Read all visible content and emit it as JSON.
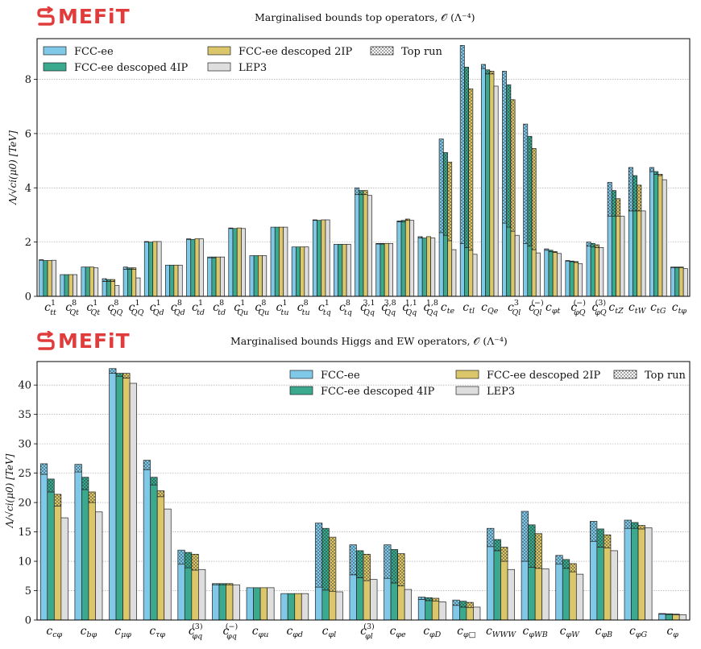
{
  "logo": {
    "text": "MEFiT",
    "color": "#e03c3c"
  },
  "colors": {
    "fcc_ee": "#7fc8e8",
    "fcc_4ip": "#3aa98e",
    "fcc_2ip": "#dcc66a",
    "lep3": "#dedede"
  },
  "chart_data": [
    {
      "type": "bar",
      "title": "Marginalised bounds top operators, 𝒪 (Λ⁻⁴)",
      "ylabel": "Λ/√ci(μ0) [TeV]",
      "ylim": [
        0,
        9.5
      ],
      "yticks": [
        0,
        2,
        4,
        6,
        8
      ],
      "grid": true,
      "legend_placement": "top-left",
      "legend_top_run": "Top run",
      "categories": [
        {
          "base": "c",
          "sub": "tt",
          "sup": "1"
        },
        {
          "base": "c",
          "sub": "Qt",
          "sup": "8"
        },
        {
          "base": "c",
          "sub": "Qt",
          "sup": "1"
        },
        {
          "base": "c",
          "sub": "QQ",
          "sup": "8"
        },
        {
          "base": "c",
          "sub": "QQ",
          "sup": "1"
        },
        {
          "base": "c",
          "sub": "Qd",
          "sup": "1"
        },
        {
          "base": "c",
          "sub": "Qd",
          "sup": "8"
        },
        {
          "base": "c",
          "sub": "td",
          "sup": "1"
        },
        {
          "base": "c",
          "sub": "td",
          "sup": "8"
        },
        {
          "base": "c",
          "sub": "Qu",
          "sup": "1"
        },
        {
          "base": "c",
          "sub": "Qu",
          "sup": "8"
        },
        {
          "base": "c",
          "sub": "tu",
          "sup": "1"
        },
        {
          "base": "c",
          "sub": "tu",
          "sup": "8"
        },
        {
          "base": "c",
          "sub": "tq",
          "sup": "1"
        },
        {
          "base": "c",
          "sub": "tq",
          "sup": "8"
        },
        {
          "base": "c",
          "sub": "Qq",
          "sup": "3,1"
        },
        {
          "base": "c",
          "sub": "Qq",
          "sup": "3,8"
        },
        {
          "base": "c",
          "sub": "Qq",
          "sup": "1,1"
        },
        {
          "base": "c",
          "sub": "Qq",
          "sup": "1,8"
        },
        {
          "base": "c",
          "sub": "te",
          "sup": ""
        },
        {
          "base": "c",
          "sub": "tl",
          "sup": ""
        },
        {
          "base": "c",
          "sub": "Qe",
          "sup": ""
        },
        {
          "base": "c",
          "sub": "Ql",
          "sup": "3"
        },
        {
          "base": "c",
          "sub": "Ql",
          "sup": "(−)"
        },
        {
          "base": "c",
          "sub": "φt",
          "sup": ""
        },
        {
          "base": "c",
          "sub": "φQ",
          "sup": "(−)"
        },
        {
          "base": "c",
          "sub": "φQ",
          "sup": "(3)"
        },
        {
          "base": "c",
          "sub": "tZ",
          "sup": ""
        },
        {
          "base": "c",
          "sub": "tW",
          "sup": ""
        },
        {
          "base": "c",
          "sub": "tG",
          "sup": ""
        },
        {
          "base": "c",
          "sub": "tφ",
          "sup": ""
        }
      ],
      "series": [
        {
          "name": "FCC-ee",
          "values": [
            1.33,
            0.8,
            1.08,
            0.55,
            1.0,
            2.0,
            1.15,
            2.1,
            1.42,
            2.5,
            1.5,
            2.55,
            1.82,
            2.8,
            1.92,
            3.75,
            1.93,
            2.75,
            2.15,
            2.35,
            1.95,
            8.4,
            2.7,
            1.95,
            1.7,
            1.3,
            1.85,
            2.95,
            3.15,
            4.6,
            1.05
          ],
          "top_run": [
            1.35,
            0.8,
            1.08,
            0.65,
            1.08,
            2.02,
            1.15,
            2.12,
            1.45,
            2.52,
            1.5,
            2.55,
            1.82,
            2.82,
            1.92,
            4.0,
            1.95,
            2.78,
            2.2,
            5.8,
            9.25,
            8.55,
            8.3,
            6.35,
            1.75,
            1.32,
            2.0,
            4.2,
            4.75,
            4.75,
            1.08
          ]
        },
        {
          "name": "FCC-ee descoped 4IP",
          "values": [
            1.32,
            0.8,
            1.08,
            0.55,
            1.0,
            2.0,
            1.15,
            2.1,
            1.42,
            2.5,
            1.5,
            2.55,
            1.82,
            2.8,
            1.92,
            3.75,
            1.93,
            2.75,
            2.15,
            2.25,
            1.8,
            8.2,
            2.55,
            1.85,
            1.65,
            1.28,
            1.82,
            2.95,
            3.15,
            4.5,
            1.05
          ],
          "top_run": [
            1.32,
            0.8,
            1.08,
            0.62,
            1.05,
            2.0,
            1.15,
            2.1,
            1.45,
            2.5,
            1.5,
            2.55,
            1.82,
            2.8,
            1.92,
            3.9,
            1.95,
            2.8,
            2.15,
            5.3,
            8.45,
            8.35,
            7.8,
            5.9,
            1.7,
            1.3,
            1.95,
            3.9,
            4.45,
            4.6,
            1.08
          ]
        },
        {
          "name": "FCC-ee descoped 2IP",
          "values": [
            1.32,
            0.8,
            1.08,
            0.55,
            1.0,
            2.02,
            1.15,
            2.12,
            1.45,
            2.52,
            1.5,
            2.55,
            1.82,
            2.82,
            1.92,
            3.75,
            1.95,
            2.8,
            2.2,
            2.05,
            1.7,
            8.2,
            2.4,
            1.72,
            1.62,
            1.25,
            1.8,
            2.95,
            3.15,
            4.45,
            1.05
          ],
          "top_run": [
            1.32,
            0.8,
            1.08,
            0.62,
            1.05,
            2.02,
            1.15,
            2.12,
            1.45,
            2.52,
            1.5,
            2.55,
            1.82,
            2.82,
            1.92,
            3.9,
            1.95,
            2.85,
            2.2,
            4.95,
            7.65,
            8.3,
            7.25,
            5.45,
            1.65,
            1.28,
            1.9,
            3.6,
            4.1,
            4.5,
            1.08
          ]
        },
        {
          "name": "LEP3",
          "values": [
            1.33,
            0.8,
            1.05,
            0.4,
            0.68,
            2.02,
            1.15,
            2.12,
            1.45,
            2.5,
            1.5,
            2.55,
            1.82,
            2.82,
            1.92,
            3.72,
            1.95,
            2.8,
            2.15,
            1.72,
            1.55,
            7.75,
            2.25,
            1.6,
            1.58,
            1.2,
            1.8,
            2.95,
            3.15,
            4.3,
            1.02
          ],
          "top_run": [
            1.33,
            0.8,
            1.05,
            0.4,
            0.68,
            2.02,
            1.15,
            2.12,
            1.45,
            2.5,
            1.5,
            2.55,
            1.82,
            2.82,
            1.92,
            3.72,
            1.95,
            2.8,
            2.15,
            1.72,
            1.55,
            7.75,
            2.25,
            1.6,
            1.58,
            1.2,
            1.8,
            2.95,
            3.15,
            4.3,
            1.02
          ]
        }
      ]
    },
    {
      "type": "bar",
      "title": "Marginalised bounds Higgs and EW operators, 𝒪 (Λ⁻⁴)",
      "ylabel": "Λ/√ci(μ0) [TeV]",
      "ylim": [
        0,
        44
      ],
      "yticks": [
        0,
        5,
        10,
        15,
        20,
        25,
        30,
        35,
        40
      ],
      "grid": true,
      "legend_placement": "top-right",
      "legend_top_run": "Top run",
      "categories": [
        {
          "base": "c",
          "sub": "cφ",
          "sup": ""
        },
        {
          "base": "c",
          "sub": "bφ",
          "sup": ""
        },
        {
          "base": "c",
          "sub": "μφ",
          "sup": ""
        },
        {
          "base": "c",
          "sub": "τφ",
          "sup": ""
        },
        {
          "base": "c",
          "sub": "φq",
          "sup": "(3)"
        },
        {
          "base": "c",
          "sub": "φq",
          "sup": "(−)"
        },
        {
          "base": "c",
          "sub": "φu",
          "sup": ""
        },
        {
          "base": "c",
          "sub": "φd",
          "sup": ""
        },
        {
          "base": "c",
          "sub": "φl",
          "sup": ""
        },
        {
          "base": "c",
          "sub": "φl",
          "sup": "(3)"
        },
        {
          "base": "c",
          "sub": "φe",
          "sup": ""
        },
        {
          "base": "c",
          "sub": "φD",
          "sup": ""
        },
        {
          "base": "c",
          "sub": "φ□",
          "sup": ""
        },
        {
          "base": "c",
          "sub": "WWW",
          "sup": ""
        },
        {
          "base": "c",
          "sub": "φWB",
          "sup": ""
        },
        {
          "base": "c",
          "sub": "φW",
          "sup": ""
        },
        {
          "base": "c",
          "sub": "φB",
          "sup": ""
        },
        {
          "base": "c",
          "sub": "φG",
          "sup": ""
        },
        {
          "base": "c",
          "sub": "φ",
          "sup": ""
        }
      ],
      "series": [
        {
          "name": "FCC-ee",
          "values": [
            24.8,
            25.2,
            42.0,
            25.6,
            9.5,
            6.0,
            5.5,
            4.5,
            5.6,
            7.7,
            7.1,
            3.5,
            2.5,
            12.5,
            10.0,
            9.5,
            13.4,
            15.6,
            1.0
          ],
          "top_run": [
            26.6,
            26.5,
            42.8,
            27.2,
            11.9,
            6.2,
            5.5,
            4.5,
            16.5,
            12.8,
            12.8,
            3.9,
            3.4,
            15.6,
            18.5,
            11.0,
            16.8,
            17.0,
            1.1
          ]
        },
        {
          "name": "FCC-ee descoped 4IP",
          "values": [
            21.8,
            22.2,
            41.5,
            23.0,
            8.9,
            6.0,
            5.5,
            4.5,
            5.1,
            7.2,
            6.3,
            3.3,
            2.2,
            11.8,
            9.0,
            8.8,
            12.4,
            15.6,
            0.95
          ],
          "top_run": [
            24.0,
            24.3,
            42.0,
            24.3,
            11.5,
            6.2,
            5.5,
            4.5,
            15.6,
            11.8,
            12.0,
            3.8,
            3.2,
            13.7,
            16.2,
            10.3,
            15.5,
            16.6,
            1.05
          ]
        },
        {
          "name": "FCC-ee descoped 2IP",
          "values": [
            19.4,
            20.0,
            41.2,
            21.0,
            8.5,
            6.0,
            5.5,
            4.5,
            4.9,
            6.7,
            5.8,
            3.2,
            2.1,
            10.0,
            8.8,
            8.2,
            12.3,
            15.5,
            0.9
          ],
          "top_run": [
            21.4,
            21.8,
            42.0,
            22.0,
            11.2,
            6.2,
            5.5,
            4.5,
            14.1,
            11.2,
            11.3,
            3.7,
            3.0,
            12.4,
            14.7,
            9.6,
            14.5,
            16.1,
            1.0
          ]
        },
        {
          "name": "LEP3",
          "values": [
            17.4,
            18.4,
            40.3,
            18.9,
            8.6,
            6.0,
            5.5,
            4.5,
            4.8,
            6.9,
            5.2,
            3.1,
            2.2,
            8.6,
            8.7,
            7.8,
            11.8,
            15.7,
            0.9
          ],
          "top_run": [
            17.4,
            18.4,
            40.3,
            18.9,
            8.6,
            6.0,
            5.5,
            4.5,
            4.8,
            6.9,
            5.2,
            3.1,
            2.2,
            8.6,
            8.7,
            7.8,
            11.8,
            15.7,
            0.9
          ]
        }
      ]
    }
  ]
}
